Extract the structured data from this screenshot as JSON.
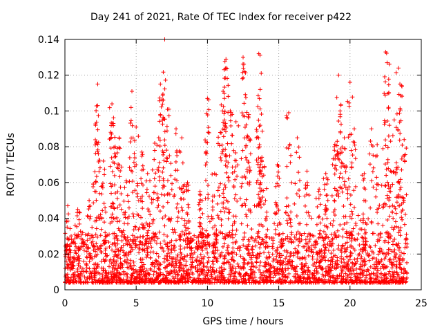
{
  "chart_data": {
    "type": "scatter",
    "title": "Day 241 of 2021, Rate Of TEC Index for receiver p422",
    "xlabel": "GPS time / hours",
    "ylabel": "ROTI / TECUs",
    "xlim": [
      0,
      25
    ],
    "ylim": [
      0,
      0.14
    ],
    "xticks": [
      0,
      5,
      10,
      15,
      20,
      25
    ],
    "xtick_labels": [
      "0",
      "5",
      "10",
      "15",
      "20",
      "25"
    ],
    "yticks": [
      0,
      0.02,
      0.04,
      0.06,
      0.08,
      0.1,
      0.12,
      0.14
    ],
    "ytick_labels": [
      "0",
      "0.02",
      "0.04",
      "0.06",
      "0.08",
      "0.1",
      "0.12",
      "0.14"
    ],
    "grid": true,
    "marker": "+",
    "color": "#ff0000",
    "series": [
      {
        "name": "ROTI",
        "peaks": [
          {
            "x": 0.2,
            "y": 0.047
          },
          {
            "x": 0.9,
            "y": 0.045
          },
          {
            "x": 1.7,
            "y": 0.05
          },
          {
            "x": 2.1,
            "y": 0.066
          },
          {
            "x": 2.3,
            "y": 0.115
          },
          {
            "x": 2.3,
            "y": 0.103
          },
          {
            "x": 2.7,
            "y": 0.072
          },
          {
            "x": 3.3,
            "y": 0.104
          },
          {
            "x": 3.4,
            "y": 0.093
          },
          {
            "x": 3.8,
            "y": 0.085
          },
          {
            "x": 4.3,
            "y": 0.061
          },
          {
            "x": 4.7,
            "y": 0.111
          },
          {
            "x": 5.0,
            "y": 0.091
          },
          {
            "x": 5.4,
            "y": 0.077
          },
          {
            "x": 5.8,
            "y": 0.065
          },
          {
            "x": 6.3,
            "y": 0.082
          },
          {
            "x": 6.7,
            "y": 0.115
          },
          {
            "x": 6.9,
            "y": 0.106
          },
          {
            "x": 7.0,
            "y": 0.14
          },
          {
            "x": 7.3,
            "y": 0.101
          },
          {
            "x": 7.8,
            "y": 0.09
          },
          {
            "x": 8.2,
            "y": 0.085
          },
          {
            "x": 8.6,
            "y": 0.06
          },
          {
            "x": 9.5,
            "y": 0.053
          },
          {
            "x": 10.0,
            "y": 0.107
          },
          {
            "x": 10.5,
            "y": 0.065
          },
          {
            "x": 10.9,
            "y": 0.088
          },
          {
            "x": 11.1,
            "y": 0.111
          },
          {
            "x": 11.3,
            "y": 0.129
          },
          {
            "x": 11.3,
            "y": 0.124
          },
          {
            "x": 11.6,
            "y": 0.1
          },
          {
            "x": 12.0,
            "y": 0.094
          },
          {
            "x": 12.5,
            "y": 0.13
          },
          {
            "x": 12.6,
            "y": 0.122
          },
          {
            "x": 12.9,
            "y": 0.098
          },
          {
            "x": 13.6,
            "y": 0.132
          },
          {
            "x": 13.7,
            "y": 0.112
          },
          {
            "x": 13.7,
            "y": 0.092
          },
          {
            "x": 14.0,
            "y": 0.069
          },
          {
            "x": 14.9,
            "y": 0.07
          },
          {
            "x": 15.7,
            "y": 0.099
          },
          {
            "x": 16.3,
            "y": 0.085
          },
          {
            "x": 17.0,
            "y": 0.06
          },
          {
            "x": 17.8,
            "y": 0.055
          },
          {
            "x": 18.3,
            "y": 0.065
          },
          {
            "x": 18.9,
            "y": 0.08
          },
          {
            "x": 19.2,
            "y": 0.12
          },
          {
            "x": 19.3,
            "y": 0.1
          },
          {
            "x": 19.6,
            "y": 0.085
          },
          {
            "x": 20.0,
            "y": 0.116
          },
          {
            "x": 20.3,
            "y": 0.09
          },
          {
            "x": 21.0,
            "y": 0.065
          },
          {
            "x": 21.5,
            "y": 0.09
          },
          {
            "x": 21.9,
            "y": 0.075
          },
          {
            "x": 22.5,
            "y": 0.133
          },
          {
            "x": 22.6,
            "y": 0.127
          },
          {
            "x": 22.7,
            "y": 0.102
          },
          {
            "x": 23.1,
            "y": 0.095
          },
          {
            "x": 23.4,
            "y": 0.124
          },
          {
            "x": 23.5,
            "y": 0.115
          },
          {
            "x": 23.8,
            "y": 0.084
          }
        ],
        "points": [
          [
            0.1,
            0.016
          ],
          [
            0.3,
            0.022
          ],
          [
            0.5,
            0.012
          ],
          [
            0.7,
            0.031
          ],
          [
            0.9,
            0.018
          ],
          [
            1.1,
            0.009
          ],
          [
            1.3,
            0.027
          ],
          [
            1.5,
            0.014
          ],
          [
            1.7,
            0.02
          ],
          [
            1.9,
            0.035
          ],
          [
            2.1,
            0.011
          ],
          [
            2.3,
            0.024
          ],
          [
            2.5,
            0.042
          ],
          [
            2.7,
            0.017
          ],
          [
            2.9,
            0.03
          ],
          [
            3.1,
            0.013
          ],
          [
            3.3,
            0.038
          ],
          [
            3.5,
            0.021
          ],
          [
            3.7,
            0.046
          ],
          [
            3.9,
            0.015
          ],
          [
            4.1,
            0.033
          ],
          [
            4.3,
            0.019
          ],
          [
            4.5,
            0.041
          ],
          [
            4.7,
            0.012
          ],
          [
            4.9,
            0.028
          ],
          [
            5.1,
            0.052
          ],
          [
            5.3,
            0.017
          ],
          [
            5.5,
            0.036
          ],
          [
            5.7,
            0.023
          ],
          [
            5.9,
            0.044
          ],
          [
            6.1,
            0.014
          ],
          [
            6.3,
            0.031
          ],
          [
            6.5,
            0.05
          ],
          [
            6.7,
            0.026
          ],
          [
            6.9,
            0.062
          ],
          [
            7.1,
            0.019
          ],
          [
            7.3,
            0.04
          ],
          [
            7.5,
            0.056
          ],
          [
            7.7,
            0.022
          ],
          [
            7.9,
            0.048
          ],
          [
            8.1,
            0.03
          ],
          [
            8.3,
            0.058
          ],
          [
            8.5,
            0.016
          ],
          [
            8.7,
            0.027
          ],
          [
            8.9,
            0.013
          ],
          [
            9.1,
            0.021
          ],
          [
            9.3,
            0.011
          ],
          [
            9.5,
            0.024
          ],
          [
            9.7,
            0.015
          ],
          [
            9.9,
            0.033
          ],
          [
            10.1,
            0.018
          ],
          [
            10.3,
            0.04
          ],
          [
            10.5,
            0.026
          ],
          [
            10.7,
            0.048
          ],
          [
            10.9,
            0.02
          ],
          [
            11.1,
            0.054
          ],
          [
            11.3,
            0.031
          ],
          [
            11.5,
            0.045
          ],
          [
            11.7,
            0.017
          ],
          [
            11.9,
            0.038
          ],
          [
            12.1,
            0.023
          ],
          [
            12.3,
            0.051
          ],
          [
            12.5,
            0.028
          ],
          [
            12.7,
            0.042
          ],
          [
            12.9,
            0.015
          ],
          [
            13.1,
            0.034
          ],
          [
            13.3,
            0.047
          ],
          [
            13.5,
            0.02
          ],
          [
            13.7,
            0.055
          ],
          [
            13.9,
            0.027
          ],
          [
            14.1,
            0.039
          ],
          [
            14.3,
            0.014
          ],
          [
            14.5,
            0.029
          ],
          [
            14.7,
            0.012
          ],
          [
            14.9,
            0.036
          ],
          [
            15.1,
            0.018
          ],
          [
            15.3,
            0.025
          ],
          [
            15.5,
            0.043
          ],
          [
            15.7,
            0.016
          ],
          [
            15.9,
            0.032
          ],
          [
            16.1,
            0.048
          ],
          [
            16.3,
            0.021
          ],
          [
            16.5,
            0.037
          ],
          [
            16.7,
            0.013
          ],
          [
            16.9,
            0.028
          ],
          [
            17.1,
            0.019
          ],
          [
            17.3,
            0.04
          ],
          [
            17.5,
            0.015
          ],
          [
            17.7,
            0.026
          ],
          [
            17.9,
            0.033
          ],
          [
            18.1,
            0.012
          ],
          [
            18.3,
            0.044
          ],
          [
            18.5,
            0.022
          ],
          [
            18.7,
            0.031
          ],
          [
            18.9,
            0.05
          ],
          [
            19.1,
            0.018
          ],
          [
            19.3,
            0.057
          ],
          [
            19.5,
            0.025
          ],
          [
            19.7,
            0.041
          ],
          [
            19.9,
            0.062
          ],
          [
            20.1,
            0.029
          ],
          [
            20.3,
            0.046
          ],
          [
            20.5,
            0.016
          ],
          [
            20.7,
            0.034
          ],
          [
            20.9,
            0.011
          ],
          [
            21.1,
            0.027
          ],
          [
            21.3,
            0.019
          ],
          [
            21.5,
            0.038
          ],
          [
            21.7,
            0.014
          ],
          [
            21.9,
            0.045
          ],
          [
            22.1,
            0.023
          ],
          [
            22.3,
            0.036
          ],
          [
            22.5,
            0.058
          ],
          [
            22.7,
            0.03
          ],
          [
            22.9,
            0.066
          ],
          [
            23.1,
            0.021
          ],
          [
            23.3,
            0.049
          ],
          [
            23.5,
            0.033
          ],
          [
            23.7,
            0.017
          ],
          [
            23.9,
            0.026
          ]
        ]
      }
    ]
  }
}
